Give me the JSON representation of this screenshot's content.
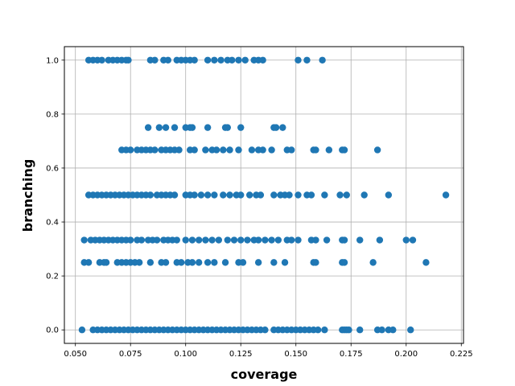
{
  "chart_data": {
    "type": "scatter",
    "title": "",
    "xlabel": "coverage",
    "ylabel": "branching",
    "xlim": [
      0.045,
      0.226
    ],
    "ylim": [
      -0.05,
      1.05
    ],
    "xticks": [
      0.05,
      0.075,
      0.1,
      0.125,
      0.15,
      0.175,
      0.2,
      0.225
    ],
    "xtick_labels": [
      "0.050",
      "0.075",
      "0.100",
      "0.125",
      "0.150",
      "0.175",
      "0.200",
      "0.225"
    ],
    "yticks": [
      0.0,
      0.2,
      0.4,
      0.6,
      0.8,
      1.0
    ],
    "ytick_labels": [
      "0.0",
      "0.2",
      "0.4",
      "0.6",
      "0.8",
      "1.0"
    ],
    "grid": true,
    "marker_color": "#1f77b4",
    "series": [
      {
        "points": [
          [
            0.053,
            0.0
          ],
          [
            0.058,
            0.0
          ],
          [
            0.06,
            0.0
          ],
          [
            0.062,
            0.0
          ],
          [
            0.064,
            0.0
          ],
          [
            0.066,
            0.0
          ],
          [
            0.068,
            0.0
          ],
          [
            0.07,
            0.0
          ],
          [
            0.072,
            0.0
          ],
          [
            0.074,
            0.0
          ],
          [
            0.076,
            0.0
          ],
          [
            0.078,
            0.0
          ],
          [
            0.08,
            0.0
          ],
          [
            0.082,
            0.0
          ],
          [
            0.084,
            0.0
          ],
          [
            0.086,
            0.0
          ],
          [
            0.088,
            0.0
          ],
          [
            0.09,
            0.0
          ],
          [
            0.092,
            0.0
          ],
          [
            0.094,
            0.0
          ],
          [
            0.096,
            0.0
          ],
          [
            0.098,
            0.0
          ],
          [
            0.1,
            0.0
          ],
          [
            0.102,
            0.0
          ],
          [
            0.104,
            0.0
          ],
          [
            0.106,
            0.0
          ],
          [
            0.108,
            0.0
          ],
          [
            0.11,
            0.0
          ],
          [
            0.112,
            0.0
          ],
          [
            0.114,
            0.0
          ],
          [
            0.116,
            0.0
          ],
          [
            0.118,
            0.0
          ],
          [
            0.12,
            0.0
          ],
          [
            0.122,
            0.0
          ],
          [
            0.124,
            0.0
          ],
          [
            0.126,
            0.0
          ],
          [
            0.128,
            0.0
          ],
          [
            0.13,
            0.0
          ],
          [
            0.132,
            0.0
          ],
          [
            0.134,
            0.0
          ],
          [
            0.136,
            0.0
          ],
          [
            0.14,
            0.0
          ],
          [
            0.142,
            0.0
          ],
          [
            0.144,
            0.0
          ],
          [
            0.146,
            0.0
          ],
          [
            0.148,
            0.0
          ],
          [
            0.15,
            0.0
          ],
          [
            0.152,
            0.0
          ],
          [
            0.154,
            0.0
          ],
          [
            0.156,
            0.0
          ],
          [
            0.158,
            0.0
          ],
          [
            0.16,
            0.0
          ],
          [
            0.163,
            0.0
          ],
          [
            0.171,
            0.0
          ],
          [
            0.172,
            0.0
          ],
          [
            0.173,
            0.0
          ],
          [
            0.174,
            0.0
          ],
          [
            0.179,
            0.0
          ],
          [
            0.187,
            0.0
          ],
          [
            0.189,
            0.0
          ],
          [
            0.192,
            0.0
          ],
          [
            0.194,
            0.0
          ],
          [
            0.202,
            0.0
          ],
          [
            0.054,
            0.25
          ],
          [
            0.056,
            0.25
          ],
          [
            0.061,
            0.25
          ],
          [
            0.063,
            0.25
          ],
          [
            0.064,
            0.25
          ],
          [
            0.069,
            0.25
          ],
          [
            0.071,
            0.25
          ],
          [
            0.073,
            0.25
          ],
          [
            0.075,
            0.25
          ],
          [
            0.077,
            0.25
          ],
          [
            0.079,
            0.25
          ],
          [
            0.084,
            0.25
          ],
          [
            0.089,
            0.25
          ],
          [
            0.091,
            0.25
          ],
          [
            0.096,
            0.25
          ],
          [
            0.098,
            0.25
          ],
          [
            0.101,
            0.25
          ],
          [
            0.103,
            0.25
          ],
          [
            0.106,
            0.25
          ],
          [
            0.11,
            0.25
          ],
          [
            0.113,
            0.25
          ],
          [
            0.118,
            0.25
          ],
          [
            0.124,
            0.25
          ],
          [
            0.126,
            0.25
          ],
          [
            0.133,
            0.25
          ],
          [
            0.14,
            0.25
          ],
          [
            0.145,
            0.25
          ],
          [
            0.158,
            0.25
          ],
          [
            0.159,
            0.25
          ],
          [
            0.171,
            0.25
          ],
          [
            0.172,
            0.25
          ],
          [
            0.185,
            0.25
          ],
          [
            0.209,
            0.25
          ],
          [
            0.054,
            0.333
          ],
          [
            0.057,
            0.333
          ],
          [
            0.059,
            0.333
          ],
          [
            0.061,
            0.333
          ],
          [
            0.063,
            0.333
          ],
          [
            0.065,
            0.333
          ],
          [
            0.067,
            0.333
          ],
          [
            0.069,
            0.333
          ],
          [
            0.071,
            0.333
          ],
          [
            0.073,
            0.333
          ],
          [
            0.075,
            0.333
          ],
          [
            0.078,
            0.333
          ],
          [
            0.08,
            0.333
          ],
          [
            0.083,
            0.333
          ],
          [
            0.085,
            0.333
          ],
          [
            0.087,
            0.333
          ],
          [
            0.09,
            0.333
          ],
          [
            0.092,
            0.333
          ],
          [
            0.094,
            0.333
          ],
          [
            0.096,
            0.333
          ],
          [
            0.1,
            0.333
          ],
          [
            0.103,
            0.333
          ],
          [
            0.106,
            0.333
          ],
          [
            0.109,
            0.333
          ],
          [
            0.112,
            0.333
          ],
          [
            0.115,
            0.333
          ],
          [
            0.119,
            0.333
          ],
          [
            0.122,
            0.333
          ],
          [
            0.125,
            0.333
          ],
          [
            0.128,
            0.333
          ],
          [
            0.131,
            0.333
          ],
          [
            0.133,
            0.333
          ],
          [
            0.136,
            0.333
          ],
          [
            0.139,
            0.333
          ],
          [
            0.142,
            0.333
          ],
          [
            0.146,
            0.333
          ],
          [
            0.148,
            0.333
          ],
          [
            0.151,
            0.333
          ],
          [
            0.157,
            0.333
          ],
          [
            0.159,
            0.333
          ],
          [
            0.164,
            0.333
          ],
          [
            0.171,
            0.333
          ],
          [
            0.172,
            0.333
          ],
          [
            0.179,
            0.333
          ],
          [
            0.188,
            0.333
          ],
          [
            0.2,
            0.333
          ],
          [
            0.203,
            0.333
          ],
          [
            0.056,
            0.5
          ],
          [
            0.058,
            0.5
          ],
          [
            0.06,
            0.5
          ],
          [
            0.062,
            0.5
          ],
          [
            0.064,
            0.5
          ],
          [
            0.066,
            0.5
          ],
          [
            0.068,
            0.5
          ],
          [
            0.07,
            0.5
          ],
          [
            0.072,
            0.5
          ],
          [
            0.074,
            0.5
          ],
          [
            0.076,
            0.5
          ],
          [
            0.078,
            0.5
          ],
          [
            0.08,
            0.5
          ],
          [
            0.082,
            0.5
          ],
          [
            0.084,
            0.5
          ],
          [
            0.087,
            0.5
          ],
          [
            0.089,
            0.5
          ],
          [
            0.091,
            0.5
          ],
          [
            0.093,
            0.5
          ],
          [
            0.095,
            0.5
          ],
          [
            0.1,
            0.5
          ],
          [
            0.102,
            0.5
          ],
          [
            0.104,
            0.5
          ],
          [
            0.107,
            0.5
          ],
          [
            0.11,
            0.5
          ],
          [
            0.113,
            0.5
          ],
          [
            0.117,
            0.5
          ],
          [
            0.12,
            0.5
          ],
          [
            0.123,
            0.5
          ],
          [
            0.125,
            0.5
          ],
          [
            0.129,
            0.5
          ],
          [
            0.132,
            0.5
          ],
          [
            0.134,
            0.5
          ],
          [
            0.14,
            0.5
          ],
          [
            0.143,
            0.5
          ],
          [
            0.145,
            0.5
          ],
          [
            0.147,
            0.5
          ],
          [
            0.151,
            0.5
          ],
          [
            0.155,
            0.5
          ],
          [
            0.157,
            0.5
          ],
          [
            0.163,
            0.5
          ],
          [
            0.17,
            0.5
          ],
          [
            0.173,
            0.5
          ],
          [
            0.181,
            0.5
          ],
          [
            0.192,
            0.5
          ],
          [
            0.218,
            0.5
          ],
          [
            0.071,
            0.667
          ],
          [
            0.073,
            0.667
          ],
          [
            0.075,
            0.667
          ],
          [
            0.078,
            0.667
          ],
          [
            0.08,
            0.667
          ],
          [
            0.082,
            0.667
          ],
          [
            0.084,
            0.667
          ],
          [
            0.086,
            0.667
          ],
          [
            0.089,
            0.667
          ],
          [
            0.091,
            0.667
          ],
          [
            0.093,
            0.667
          ],
          [
            0.095,
            0.667
          ],
          [
            0.097,
            0.667
          ],
          [
            0.102,
            0.667
          ],
          [
            0.104,
            0.667
          ],
          [
            0.109,
            0.667
          ],
          [
            0.112,
            0.667
          ],
          [
            0.114,
            0.667
          ],
          [
            0.117,
            0.667
          ],
          [
            0.12,
            0.667
          ],
          [
            0.124,
            0.667
          ],
          [
            0.13,
            0.667
          ],
          [
            0.133,
            0.667
          ],
          [
            0.135,
            0.667
          ],
          [
            0.139,
            0.667
          ],
          [
            0.146,
            0.667
          ],
          [
            0.148,
            0.667
          ],
          [
            0.158,
            0.667
          ],
          [
            0.159,
            0.667
          ],
          [
            0.165,
            0.667
          ],
          [
            0.171,
            0.667
          ],
          [
            0.172,
            0.667
          ],
          [
            0.187,
            0.667
          ],
          [
            0.083,
            0.75
          ],
          [
            0.088,
            0.75
          ],
          [
            0.091,
            0.75
          ],
          [
            0.095,
            0.75
          ],
          [
            0.1,
            0.75
          ],
          [
            0.102,
            0.75
          ],
          [
            0.103,
            0.75
          ],
          [
            0.11,
            0.75
          ],
          [
            0.118,
            0.75
          ],
          [
            0.119,
            0.75
          ],
          [
            0.125,
            0.75
          ],
          [
            0.14,
            0.75
          ],
          [
            0.141,
            0.75
          ],
          [
            0.144,
            0.75
          ],
          [
            0.056,
            1.0
          ],
          [
            0.058,
            1.0
          ],
          [
            0.06,
            1.0
          ],
          [
            0.062,
            1.0
          ],
          [
            0.065,
            1.0
          ],
          [
            0.067,
            1.0
          ],
          [
            0.069,
            1.0
          ],
          [
            0.071,
            1.0
          ],
          [
            0.073,
            1.0
          ],
          [
            0.074,
            1.0
          ],
          [
            0.084,
            1.0
          ],
          [
            0.086,
            1.0
          ],
          [
            0.09,
            1.0
          ],
          [
            0.092,
            1.0
          ],
          [
            0.096,
            1.0
          ],
          [
            0.098,
            1.0
          ],
          [
            0.1,
            1.0
          ],
          [
            0.102,
            1.0
          ],
          [
            0.104,
            1.0
          ],
          [
            0.11,
            1.0
          ],
          [
            0.113,
            1.0
          ],
          [
            0.116,
            1.0
          ],
          [
            0.119,
            1.0
          ],
          [
            0.121,
            1.0
          ],
          [
            0.124,
            1.0
          ],
          [
            0.127,
            1.0
          ],
          [
            0.131,
            1.0
          ],
          [
            0.133,
            1.0
          ],
          [
            0.135,
            1.0
          ],
          [
            0.151,
            1.0
          ],
          [
            0.155,
            1.0
          ],
          [
            0.162,
            1.0
          ]
        ]
      }
    ]
  }
}
